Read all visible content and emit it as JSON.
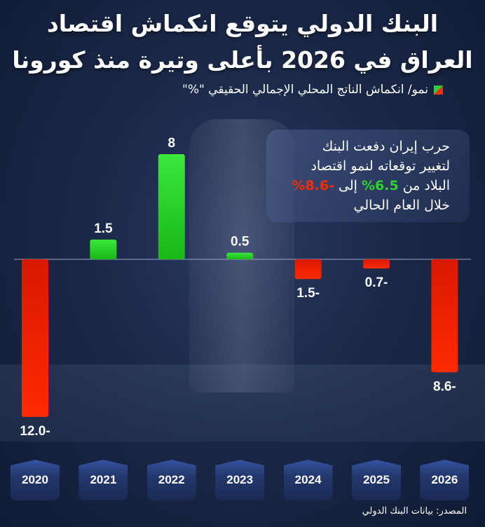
{
  "title_lines": [
    "البنك الدولي يتوقع انكماش اقتصاد",
    "العراق في 2026 بأعلى وتيرة منذ كورونا"
  ],
  "colors": {
    "positive": "#2ecc40",
    "negative": "#ff2200",
    "background": "#17243f"
  },
  "note": {
    "line1": "حرب إيران دفعت البنك",
    "line2": "لتغيير توقعاته لنمو اقتصاد",
    "line3_prefix": "البلاد من ",
    "line3_from": "6.5%",
    "line3_mid": " إلى ",
    "line3_to": "-8.6%",
    "line4": "خلال العام الحالي"
  },
  "source": "المصدر: بيانات البنك الدولي",
  "chart_data": {
    "type": "bar",
    "legend": "نمو/ انكماش الناتج المحلي الإجمالي الحقيقي \"%\"",
    "legend_placement": "top-right",
    "categories": [
      "2020",
      "2021",
      "2022",
      "2023",
      "2024",
      "2025",
      "2026"
    ],
    "values": [
      -12.0,
      1.5,
      8,
      0.5,
      -1.5,
      -0.7,
      -8.6
    ],
    "data_labels": [
      "12.0-",
      "1.5",
      "8",
      "0.5",
      "1.5-",
      "0.7-",
      "8.6-"
    ],
    "grid": false
  }
}
